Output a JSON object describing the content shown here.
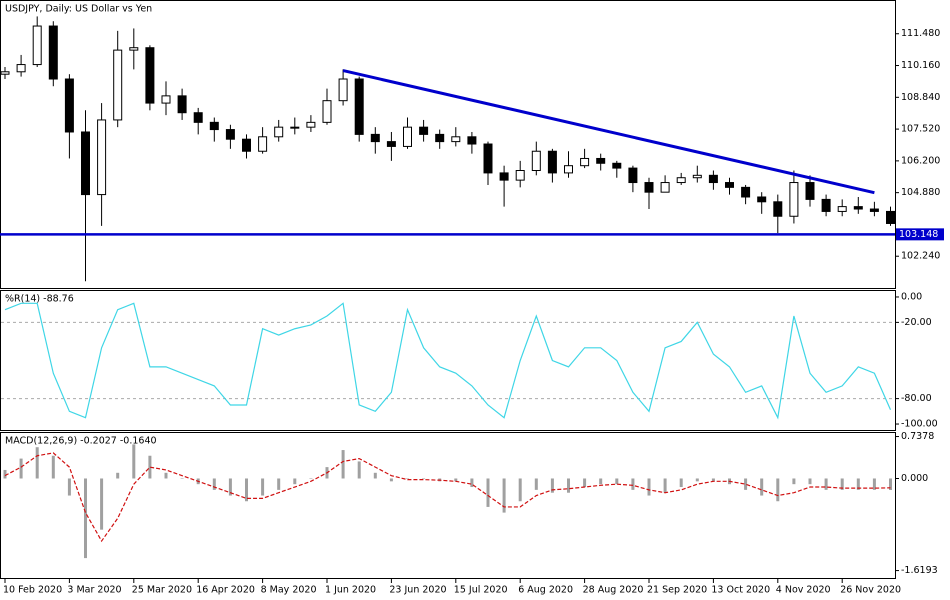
{
  "chart_data": [
    {
      "type": "candlestick",
      "title": "USDJPY, Daily:  US Dollar vs Yen",
      "categories": [
        "10 Feb 2020",
        null,
        null,
        null,
        "3 Mar 2020",
        null,
        null,
        null,
        "25 Mar 2020",
        null,
        null,
        null,
        "16 Apr 2020",
        null,
        null,
        null,
        "8 May 2020",
        null,
        null,
        null,
        "1 Jun 2020",
        null,
        null,
        null,
        "23 Jun 2020",
        null,
        null,
        null,
        "15 Jul 2020",
        null,
        null,
        null,
        "6 Aug 2020",
        null,
        null,
        null,
        "28 Aug 2020",
        null,
        null,
        null,
        "21 Sep 2020",
        null,
        null,
        null,
        "13 Oct 2020",
        null,
        null,
        null,
        "4 Nov 2020",
        null,
        null,
        null,
        "26 Nov 2020",
        null,
        null,
        null
      ],
      "open": [
        109.8,
        109.9,
        110.2,
        111.8,
        109.6,
        107.4,
        104.8,
        107.9,
        110.8,
        110.9,
        108.6,
        108.9,
        108.2,
        107.8,
        107.5,
        107.1,
        106.6,
        107.2,
        107.6,
        107.6,
        107.8,
        108.7,
        109.6,
        107.3,
        107.0,
        106.8,
        107.6,
        107.3,
        107.0,
        107.2,
        106.9,
        105.7,
        105.4,
        105.8,
        106.6,
        105.7,
        106.0,
        106.3,
        106.1,
        105.9,
        105.3,
        104.9,
        105.3,
        105.5,
        105.6,
        105.3,
        105.1,
        104.7,
        104.5,
        103.9,
        105.3,
        104.6,
        104.1,
        104.3,
        104.2,
        104.1
      ],
      "high": [
        110.1,
        110.6,
        112.2,
        112.0,
        109.8,
        108.3,
        108.6,
        111.6,
        111.7,
        111.0,
        109.5,
        109.2,
        108.4,
        108.0,
        107.7,
        107.3,
        107.6,
        107.9,
        108.0,
        108.1,
        109.2,
        110.0,
        109.7,
        107.6,
        107.4,
        108.0,
        107.9,
        107.5,
        107.6,
        107.4,
        107.0,
        106.0,
        106.2,
        107.0,
        106.7,
        106.6,
        106.7,
        106.5,
        106.2,
        106.0,
        105.5,
        105.6,
        105.7,
        106.0,
        105.8,
        105.5,
        105.2,
        104.9,
        104.8,
        105.8,
        105.6,
        104.8,
        104.6,
        104.7,
        104.5,
        104.3
      ],
      "low": [
        109.6,
        109.7,
        110.1,
        109.3,
        106.3,
        101.2,
        103.5,
        107.6,
        110.0,
        108.3,
        108.1,
        107.9,
        107.3,
        107.0,
        106.7,
        106.3,
        106.5,
        107.0,
        107.3,
        107.4,
        107.7,
        108.5,
        107.0,
        106.5,
        106.2,
        106.7,
        107.0,
        106.7,
        106.8,
        106.5,
        105.2,
        104.3,
        105.1,
        105.6,
        105.3,
        105.5,
        105.9,
        105.8,
        105.5,
        104.9,
        104.2,
        104.9,
        105.2,
        105.3,
        105.0,
        104.8,
        104.4,
        104.0,
        103.2,
        103.6,
        104.3,
        103.9,
        103.9,
        104.0,
        103.9,
        103.5
      ],
      "close": [
        109.9,
        110.2,
        111.8,
        109.6,
        107.4,
        104.8,
        107.9,
        110.8,
        110.9,
        108.6,
        108.9,
        108.2,
        107.8,
        107.5,
        107.1,
        106.6,
        107.2,
        107.6,
        107.6,
        107.8,
        108.7,
        109.6,
        107.3,
        107.0,
        106.8,
        107.6,
        107.3,
        107.0,
        107.2,
        106.9,
        105.7,
        105.4,
        105.8,
        106.6,
        105.7,
        106.0,
        106.3,
        106.1,
        105.9,
        105.3,
        104.9,
        105.3,
        105.5,
        105.6,
        105.3,
        105.1,
        104.7,
        104.5,
        103.9,
        105.3,
        104.6,
        104.1,
        104.3,
        104.2,
        104.1,
        103.6
      ],
      "color_up": "#ffffff",
      "color_down": "#000000",
      "ylim": [
        100.92,
        112.84
      ],
      "yticks": [
        {
          "value": 111.48,
          "label": "111.480"
        },
        {
          "value": 110.16,
          "label": "110.160"
        },
        {
          "value": 108.84,
          "label": "108.840"
        },
        {
          "value": 107.52,
          "label": "107.520"
        },
        {
          "value": 106.2,
          "label": "106.200"
        },
        {
          "value": 104.88,
          "label": "104.880"
        },
        {
          "value": 102.24,
          "label": "102.240"
        }
      ],
      "hline": {
        "value": 103.148,
        "color": "#0000cc"
      },
      "trendline": {
        "values": [
          109.95,
          104.88
        ],
        "color": "#0000cc"
      }
    },
    {
      "type": "line",
      "title": "%R(14) -88.76",
      "color": "#3fd6e6",
      "values": [
        -10,
        -5,
        -5,
        -60,
        -90,
        -95,
        -40,
        -10,
        -5,
        -55,
        -55,
        -60,
        -65,
        -70,
        -85,
        -85,
        -25,
        -30,
        -25,
        -22,
        -15,
        -5,
        -85,
        -90,
        -75,
        -10,
        -40,
        -55,
        -60,
        -70,
        -85,
        -95,
        -50,
        -15,
        -50,
        -55,
        -40,
        -40,
        -50,
        -75,
        -90,
        -40,
        -35,
        -20,
        -45,
        -55,
        -75,
        -70,
        -95,
        -15,
        -60,
        -75,
        -70,
        -55,
        -60,
        -88.76
      ],
      "ylim": [
        -104.7,
        4.7
      ],
      "yticks": [
        {
          "value": 0,
          "label": "0.00"
        },
        {
          "value": -20,
          "label": "-20.00"
        },
        {
          "value": -80,
          "label": "-80.00"
        },
        {
          "value": -100,
          "label": "-100.00"
        }
      ],
      "levels": [
        -20,
        -80
      ]
    },
    {
      "type": "macd",
      "title": "MACD(12,26,9) -0.2027 -0.1640",
      "hist_color": "#a0a0a0",
      "signal_color": "#d01010",
      "histogram": [
        0.15,
        0.35,
        0.55,
        0.4,
        -0.3,
        -1.4,
        -0.9,
        0.1,
        0.6,
        0.4,
        0.1,
        0.0,
        -0.1,
        -0.2,
        -0.3,
        -0.4,
        -0.3,
        -0.2,
        -0.1,
        0.0,
        0.2,
        0.5,
        0.3,
        0.1,
        -0.05,
        0.0,
        0.0,
        -0.05,
        -0.05,
        -0.15,
        -0.5,
        -0.6,
        -0.4,
        -0.2,
        -0.25,
        -0.25,
        -0.15,
        -0.1,
        -0.1,
        -0.2,
        -0.3,
        -0.25,
        -0.15,
        -0.05,
        -0.05,
        -0.1,
        -0.2,
        -0.3,
        -0.4,
        -0.1,
        -0.1,
        -0.2,
        -0.2,
        -0.2,
        -0.2,
        -0.2027
      ],
      "signal": [
        0.05,
        0.2,
        0.4,
        0.45,
        0.2,
        -0.6,
        -1.1,
        -0.7,
        -0.1,
        0.2,
        0.15,
        0.05,
        -0.05,
        -0.15,
        -0.25,
        -0.35,
        -0.35,
        -0.25,
        -0.15,
        -0.05,
        0.1,
        0.3,
        0.35,
        0.2,
        0.05,
        -0.02,
        -0.02,
        -0.03,
        -0.05,
        -0.1,
        -0.3,
        -0.5,
        -0.5,
        -0.3,
        -0.2,
        -0.18,
        -0.15,
        -0.12,
        -0.1,
        -0.12,
        -0.2,
        -0.25,
        -0.2,
        -0.1,
        -0.05,
        -0.05,
        -0.1,
        -0.2,
        -0.3,
        -0.25,
        -0.15,
        -0.15,
        -0.17,
        -0.17,
        -0.17,
        -0.164
      ],
      "ylim": [
        -1.75,
        0.8
      ],
      "yticks": [
        {
          "value": 0.7378,
          "label": "0.7378"
        },
        {
          "value": 0,
          "label": "0.000"
        },
        -1.6193
      ]
    }
  ]
}
